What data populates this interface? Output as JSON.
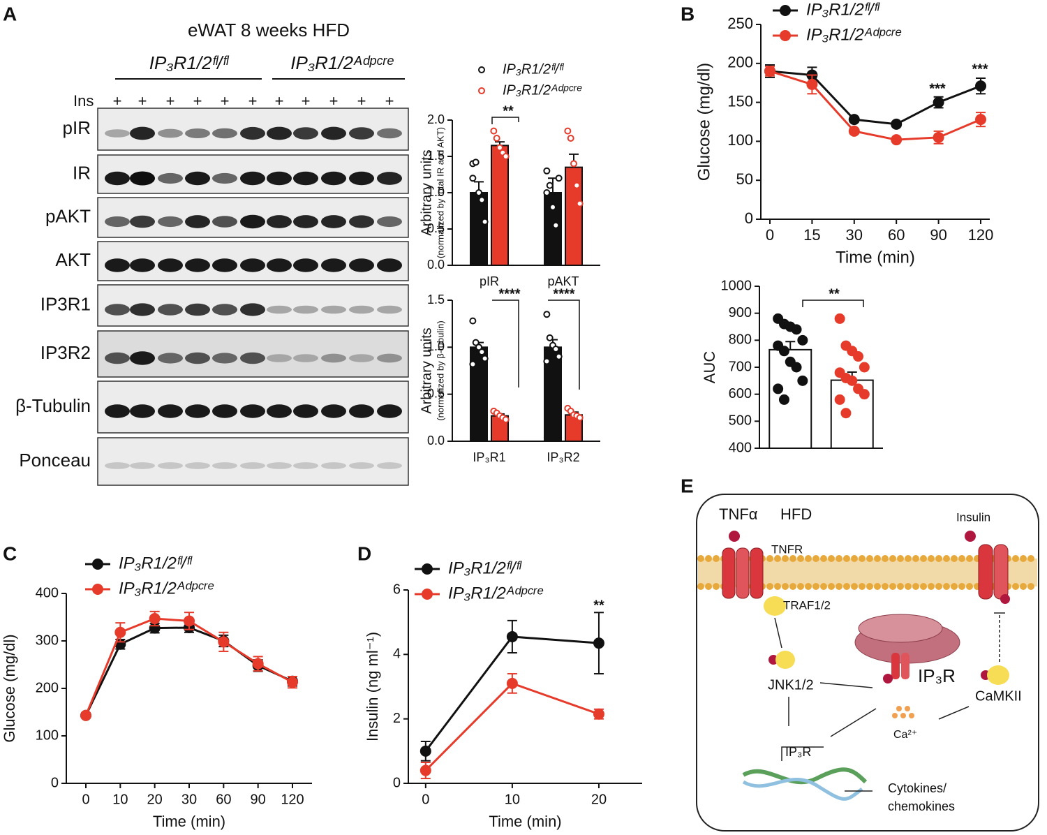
{
  "blot": {
    "panel": "A",
    "title": "eWAT  8 weeks HFD",
    "groups": [
      "IP₃R1/2ᶠˡ/ᶠˡ",
      "IP₃R1/2ᴬᵈᵖᶜʳᵉ"
    ],
    "treatment": "Ins",
    "lanes": [
      "+",
      "+",
      "+",
      "+",
      "+",
      "+",
      "+",
      "+",
      "+",
      "+",
      "+"
    ],
    "rows": [
      "pIR",
      "IR",
      "pAKT",
      "AKT",
      "IP3R1",
      "IP3R2",
      "β-Tubulin",
      "Ponceau"
    ]
  },
  "chart_data": [
    {
      "type": "bar",
      "ylabel": "Arbitrary units",
      "ylabel_note": "(normalized by total IR and AKT)",
      "categories": [
        "pIR",
        "pAKT"
      ],
      "series": [
        {
          "name": "IP₃R1/2ᶠˡ/ᶠˡ",
          "color": "#111111",
          "values": [
            1.0,
            1.0
          ],
          "errors": [
            0.15,
            0.2
          ],
          "points": [
            [
              1.4,
              1.42,
              1.0,
              0.9,
              0.6,
              1.2
            ],
            [
              1.3,
              1.1,
              0.8,
              0.55,
              1.2,
              1.0
            ]
          ]
        },
        {
          "name": "IP₃R1/2ᴬᵈᵖᶜʳᵉ",
          "color": "#e63a2a",
          "values": [
            1.65,
            1.35
          ],
          "errors": [
            0.05,
            0.18
          ],
          "points": [
            [
              1.85,
              1.75,
              1.62,
              1.55,
              1.5
            ],
            [
              1.85,
              1.75,
              1.4,
              1.1,
              0.85
            ]
          ]
        }
      ],
      "ylim": [
        0,
        2
      ],
      "yticks": [
        {
          "value": 0,
          "label": "0.0"
        },
        0.5,
        {
          "value": 1,
          "label": "1.0"
        },
        1.5,
        {
          "value": 2,
          "label": "2.0"
        }
      ],
      "legend": "top-left",
      "annotations": [
        "**"
      ]
    },
    {
      "type": "bar",
      "ylabel": "Arbitrary units",
      "ylabel_note": "(normalized by β-tubulin)",
      "categories": [
        "IP₃R1",
        "IP₃R2"
      ],
      "series": [
        {
          "name": "IP₃R1/2ᶠˡ/ᶠˡ",
          "color": "#111111",
          "values": [
            1.0,
            1.0
          ],
          "errors": [
            0.05,
            0.08
          ],
          "points": [
            [
              1.28,
              1.05,
              1.0,
              0.95,
              0.88,
              0.82
            ],
            [
              1.35,
              1.1,
              1.02,
              0.98,
              0.9,
              0.85
            ]
          ]
        },
        {
          "name": "IP₃R1/2ᴬᵈᵖᶜʳᵉ",
          "color": "#e63a2a",
          "values": [
            0.27,
            0.28
          ],
          "errors": [
            0.02,
            0.03
          ],
          "points": [
            [
              0.32,
              0.3,
              0.27,
              0.25,
              0.23
            ],
            [
              0.35,
              0.32,
              0.28,
              0.27,
              0.25
            ]
          ]
        }
      ],
      "ylim": [
        0,
        1.5
      ],
      "yticks": [
        {
          "value": 0,
          "label": "0.0"
        },
        0.5,
        {
          "value": 1,
          "label": "1.0"
        },
        1.5
      ],
      "annotations": [
        "****",
        "****"
      ]
    },
    {
      "type": "line",
      "panel": "B",
      "xlabel": "Time (min)",
      "ylabel": "Glucose (mg/dl)",
      "categories": [
        0,
        15,
        30,
        60,
        90,
        120
      ],
      "series": [
        {
          "name": "IP₃R1/2ᶠˡ/ᶠˡ",
          "color": "#111111",
          "values": [
            190,
            185,
            128,
            122,
            150,
            171
          ],
          "errors": [
            8,
            10,
            3,
            3,
            7,
            10
          ]
        },
        {
          "name": "IP₃R1/2ᴬᵈᵖᶜʳᵉ",
          "color": "#e63a2a",
          "values": [
            190,
            173,
            113,
            102,
            105,
            128
          ],
          "errors": [
            6,
            12,
            3,
            2,
            8,
            9
          ]
        }
      ],
      "ylim": [
        0,
        250
      ],
      "yticks": [
        0,
        50,
        100,
        150,
        200,
        250
      ],
      "legend": "top-left",
      "annotations": [
        "***",
        "***"
      ]
    },
    {
      "type": "bar",
      "ylabel": "AUC",
      "categories": [
        null,
        null
      ],
      "series": [
        {
          "color": "#ffffff",
          "values": [
            765,
            652
          ],
          "errors": [
            30,
            30
          ],
          "point_colors": [
            "#111111",
            "#e63a2a"
          ],
          "points": [
            [
              880,
              860,
              850,
              840,
              800,
              780,
              760,
              720,
              700,
              650,
              620,
              580
            ],
            [
              880,
              780,
              760,
              740,
              700,
              680,
              660,
              650,
              620,
              600,
              580,
              530
            ]
          ]
        }
      ],
      "ylim": [
        400,
        1000
      ],
      "yticks": [
        400,
        500,
        600,
        700,
        800,
        900,
        1000
      ],
      "annotations": [
        "**"
      ]
    },
    {
      "type": "line",
      "panel": "C",
      "xlabel": "Time  (min)",
      "ylabel": "Glucose (mg/dl)",
      "categories": [
        0,
        10,
        20,
        30,
        60,
        90,
        120
      ],
      "series": [
        {
          "name": "IP₃R1/2ᶠˡ/ᶠˡ",
          "color": "#111111",
          "values": [
            143,
            293,
            327,
            328,
            300,
            248,
            215
          ],
          "errors": [
            5,
            10,
            10,
            10,
            12,
            12,
            10
          ]
        },
        {
          "name": "IP₃R1/2ᴬᵈᵖᶜʳᵉ",
          "color": "#e63a2a",
          "values": [
            143,
            318,
            347,
            342,
            298,
            252,
            213
          ],
          "errors": [
            5,
            20,
            15,
            18,
            20,
            15,
            12
          ]
        }
      ],
      "ylim": [
        0,
        400
      ],
      "yticks": [
        0,
        100,
        200,
        300,
        400
      ],
      "legend": "top-left"
    },
    {
      "type": "line",
      "panel": "D",
      "xlabel": "Time  (min)",
      "ylabel": "Insulin (ng ml⁻¹)",
      "x": [
        0,
        10,
        20
      ],
      "xlim": [
        -2,
        25
      ],
      "xticks": [
        0,
        10,
        20
      ],
      "series": [
        {
          "name": "IP₃R1/2ᶠˡ/ᶠˡ",
          "color": "#111111",
          "values": [
            1.0,
            4.55,
            4.35
          ],
          "errors": [
            0.3,
            0.5,
            0.95
          ]
        },
        {
          "name": "IP₃R1/2ᴬᵈᵖᶜʳᵉ",
          "color": "#e63a2a",
          "values": [
            0.4,
            3.1,
            2.15
          ],
          "errors": [
            0.25,
            0.3,
            0.15
          ]
        }
      ],
      "ylim": [
        0,
        6
      ],
      "yticks": [
        0,
        2,
        4,
        6
      ],
      "legend": "top-left",
      "annotations": [
        "**"
      ]
    }
  ],
  "diagram": {
    "panel": "E",
    "labels": [
      "TNFα",
      "HFD",
      "TNFR",
      "Insulin",
      "TRAF1/2",
      "JNK1/2",
      "IP₃R",
      "CaMKII",
      "Ca²⁺",
      "IP₃R",
      "Cytokines/",
      "chemokines"
    ]
  }
}
